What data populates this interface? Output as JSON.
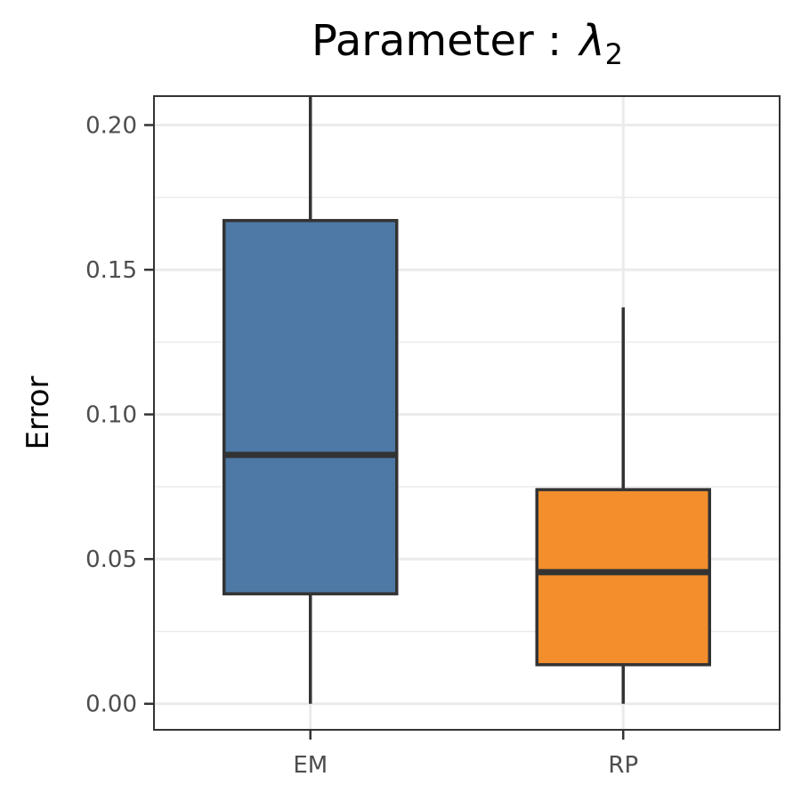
{
  "chart_data": {
    "type": "boxplot",
    "title_prefix": "Parameter :",
    "title_symbol": "λ",
    "title_subscript": "2",
    "xlabel": "",
    "ylabel": "Error",
    "ylim": [
      -0.009,
      0.21
    ],
    "yticks": [
      "0.00",
      "0.05",
      "0.10",
      "0.15",
      "0.20"
    ],
    "ytick_values": [
      0,
      0.05,
      0.1,
      0.15,
      0.2
    ],
    "grid": true,
    "categories": [
      "EM",
      "RP"
    ],
    "boxes": [
      {
        "category": "EM",
        "whisker_low": 0.0,
        "q1": 0.038,
        "median": 0.086,
        "q3": 0.167,
        "whisker_high": 0.21,
        "color": "#4e79a7"
      },
      {
        "category": "RP",
        "whisker_low": 0.0,
        "q1": 0.0135,
        "median": 0.0455,
        "q3": 0.074,
        "whisker_high": 0.137,
        "color": "#f28e2b"
      }
    ],
    "colors": {
      "panel_border": "#333333",
      "grid": "#ebebeb",
      "box_outline": "#333333",
      "tick_label": "#4d4d4d"
    }
  }
}
